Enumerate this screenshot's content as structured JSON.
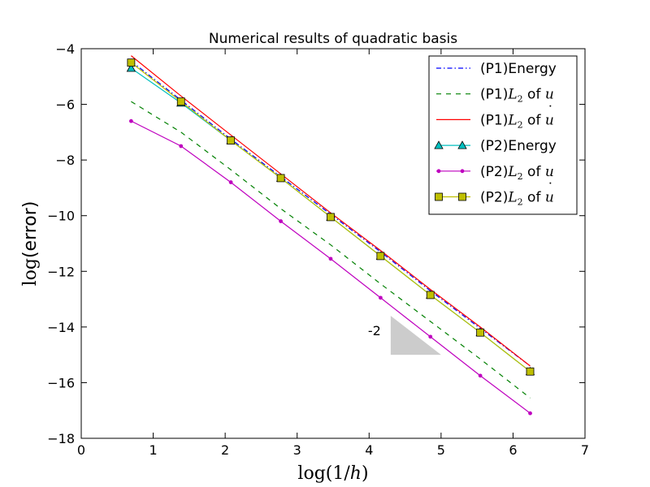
{
  "chart_data": {
    "type": "line",
    "title": "Numerical results of quadratic basis",
    "xlabel": "log(1/h)",
    "ylabel": "log(error)",
    "xlim": [
      0,
      7
    ],
    "ylim": [
      -18,
      -4
    ],
    "xticks": [
      0,
      1,
      2,
      3,
      4,
      5,
      6,
      7
    ],
    "yticks": [
      -4,
      -6,
      -8,
      -10,
      -12,
      -14,
      -16,
      -18
    ],
    "grid": false,
    "legend_position": "top-right",
    "series": [
      {
        "name": "(P1)Energy",
        "color": "#0000ff",
        "style": "dashdot",
        "marker": "none",
        "x": [
          0.693,
          1.386,
          2.079,
          2.773,
          3.466,
          4.159,
          4.852,
          5.545,
          6.238
        ],
        "y": [
          -4.45,
          -5.85,
          -7.25,
          -8.6,
          -9.95,
          -11.3,
          -12.7,
          -14.05,
          -15.4
        ]
      },
      {
        "name": "(P1)L2 of u",
        "color": "#008000",
        "style": "dashed",
        "marker": "none",
        "x": [
          0.693,
          1.386,
          2.079,
          2.773,
          3.466,
          4.159,
          4.852,
          5.545,
          6.238
        ],
        "y": [
          -5.9,
          -7.0,
          -8.35,
          -9.75,
          -11.05,
          -12.45,
          -13.8,
          -15.15,
          -16.55
        ]
      },
      {
        "name": "(P1)L2 of u-dot",
        "color": "#ff0000",
        "style": "solid",
        "marker": "none",
        "x": [
          0.693,
          1.386,
          2.079,
          2.773,
          3.466,
          4.159,
          4.852,
          5.545,
          6.238
        ],
        "y": [
          -4.25,
          -5.7,
          -7.1,
          -8.5,
          -9.9,
          -11.25,
          -12.65,
          -14.0,
          -15.4
        ]
      },
      {
        "name": "(P2)Energy",
        "color": "#00bfbf",
        "style": "solid",
        "marker": "triangle",
        "x": [
          0.693,
          1.386,
          2.079,
          2.773,
          3.466,
          4.159,
          4.852,
          5.545,
          6.238
        ],
        "y": [
          -4.7,
          -5.95,
          -7.3,
          -8.65,
          -10.05,
          -11.45,
          -12.85,
          -14.2,
          -15.6
        ]
      },
      {
        "name": "(P2)L2 of u",
        "color": "#bf00bf",
        "style": "solid",
        "marker": "dot",
        "x": [
          0.693,
          1.386,
          2.079,
          2.773,
          3.466,
          4.159,
          4.852,
          5.545,
          6.238
        ],
        "y": [
          -6.6,
          -7.5,
          -8.8,
          -10.2,
          -11.55,
          -12.95,
          -14.35,
          -15.75,
          -17.1
        ]
      },
      {
        "name": "(P2)L2 of u-dot",
        "color": "#bfbf00",
        "style": "solid",
        "marker": "square",
        "x": [
          0.693,
          1.386,
          2.079,
          2.773,
          3.466,
          4.159,
          4.852,
          5.545,
          6.238
        ],
        "y": [
          -4.5,
          -5.9,
          -7.3,
          -8.65,
          -10.05,
          -11.45,
          -12.85,
          -14.2,
          -15.6
        ]
      }
    ],
    "annotation": {
      "text": "-2",
      "triangle": {
        "x0": 4.3,
        "x1": 5.0,
        "y_top": -13.6,
        "y_bottom": -15.0
      }
    }
  },
  "legend": {
    "labels": [
      {
        "prefix": "(P1)Energy",
        "l2": "",
        "sub": "",
        "of": "",
        "var": "",
        "dot": ""
      },
      {
        "prefix": "(P1)",
        "l2": "L",
        "sub": "2",
        "of": " of ",
        "var": "u",
        "dot": ""
      },
      {
        "prefix": "(P1)",
        "l2": "L",
        "sub": "2",
        "of": " of ",
        "var": "u",
        "dot": "˙"
      },
      {
        "prefix": "(P2)Energy",
        "l2": "",
        "sub": "",
        "of": "",
        "var": "",
        "dot": ""
      },
      {
        "prefix": "(P2)",
        "l2": "L",
        "sub": "2",
        "of": " of ",
        "var": "u",
        "dot": ""
      },
      {
        "prefix": "(P2)",
        "l2": "L",
        "sub": "2",
        "of": " of ",
        "var": "u",
        "dot": "˙"
      }
    ]
  },
  "axis_text": {
    "ylabel_fn": "log",
    "ylabel_arg": "(error)",
    "xlabel_fn": "log",
    "xlabel_arg_open": "(1/",
    "xlabel_var": "h",
    "xlabel_arg_close": ")"
  }
}
